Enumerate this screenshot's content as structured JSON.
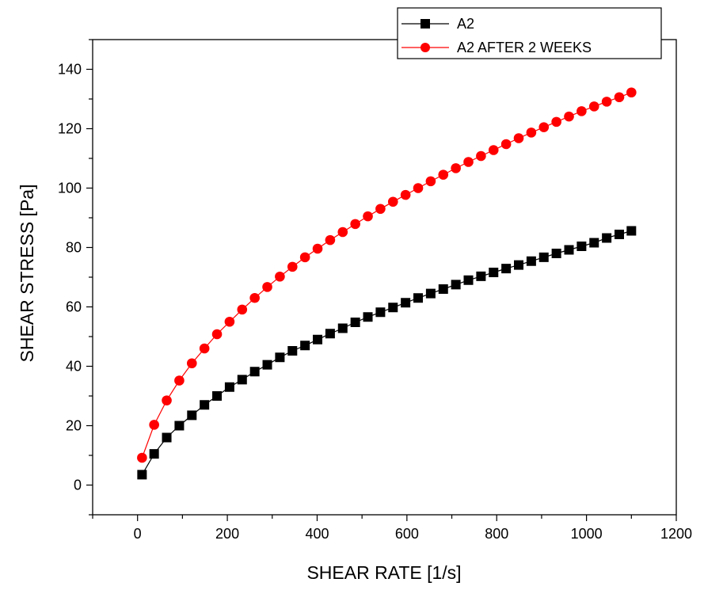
{
  "chart_data": {
    "type": "line",
    "xlabel": "SHEAR RATE [1/s]",
    "ylabel": "SHEAR STRESS [Pa]",
    "xlim": [
      -100,
      1200
    ],
    "ylim": [
      -10,
      150
    ],
    "xticks": [
      0,
      200,
      400,
      600,
      800,
      1000,
      1200
    ],
    "yticks": [
      0,
      20,
      40,
      60,
      80,
      100,
      120,
      140
    ],
    "legend_position": "top-right",
    "grid": false,
    "series": [
      {
        "name": "A2",
        "color": "#000000",
        "marker": "square",
        "x": [
          10,
          37,
          65,
          93,
          121,
          149,
          177,
          205,
          233,
          261,
          289,
          317,
          345,
          373,
          401,
          429,
          457,
          485,
          513,
          541,
          569,
          597,
          625,
          653,
          681,
          709,
          737,
          765,
          793,
          821,
          849,
          877,
          905,
          933,
          961,
          989,
          1017,
          1045,
          1073,
          1100
        ],
        "y": [
          3.5,
          10.5,
          16,
          20,
          23.5,
          27,
          30,
          33,
          35.5,
          38.2,
          40.5,
          43,
          45.2,
          47,
          49,
          51,
          52.8,
          54.8,
          56.6,
          58.2,
          59.8,
          61.4,
          63,
          64.5,
          66,
          67.5,
          69,
          70.3,
          71.6,
          72.9,
          74.1,
          75.4,
          76.7,
          78,
          79.2,
          80.4,
          81.6,
          83.2,
          84.4,
          85.6
        ]
      },
      {
        "name": "A2 AFTER 2 WEEKS",
        "color": "#ff0000",
        "marker": "circle",
        "x": [
          10,
          37,
          65,
          93,
          121,
          149,
          177,
          205,
          233,
          261,
          289,
          317,
          345,
          373,
          401,
          429,
          457,
          485,
          513,
          541,
          569,
          597,
          625,
          653,
          681,
          709,
          737,
          765,
          793,
          821,
          849,
          877,
          905,
          933,
          961,
          989,
          1017,
          1045,
          1073,
          1100
        ],
        "y": [
          9.2,
          20.3,
          28.5,
          35.2,
          41,
          46,
          50.8,
          55,
          59.1,
          63,
          66.7,
          70.2,
          73.5,
          76.7,
          79.6,
          82.5,
          85.2,
          87.9,
          90.5,
          93,
          95.4,
          97.7,
          100,
          102.3,
          104.5,
          106.7,
          108.8,
          110.8,
          112.8,
          114.8,
          116.8,
          118.7,
          120.5,
          122.3,
          124.1,
          125.9,
          127.5,
          129.1,
          130.6,
          132.2
        ]
      }
    ]
  }
}
